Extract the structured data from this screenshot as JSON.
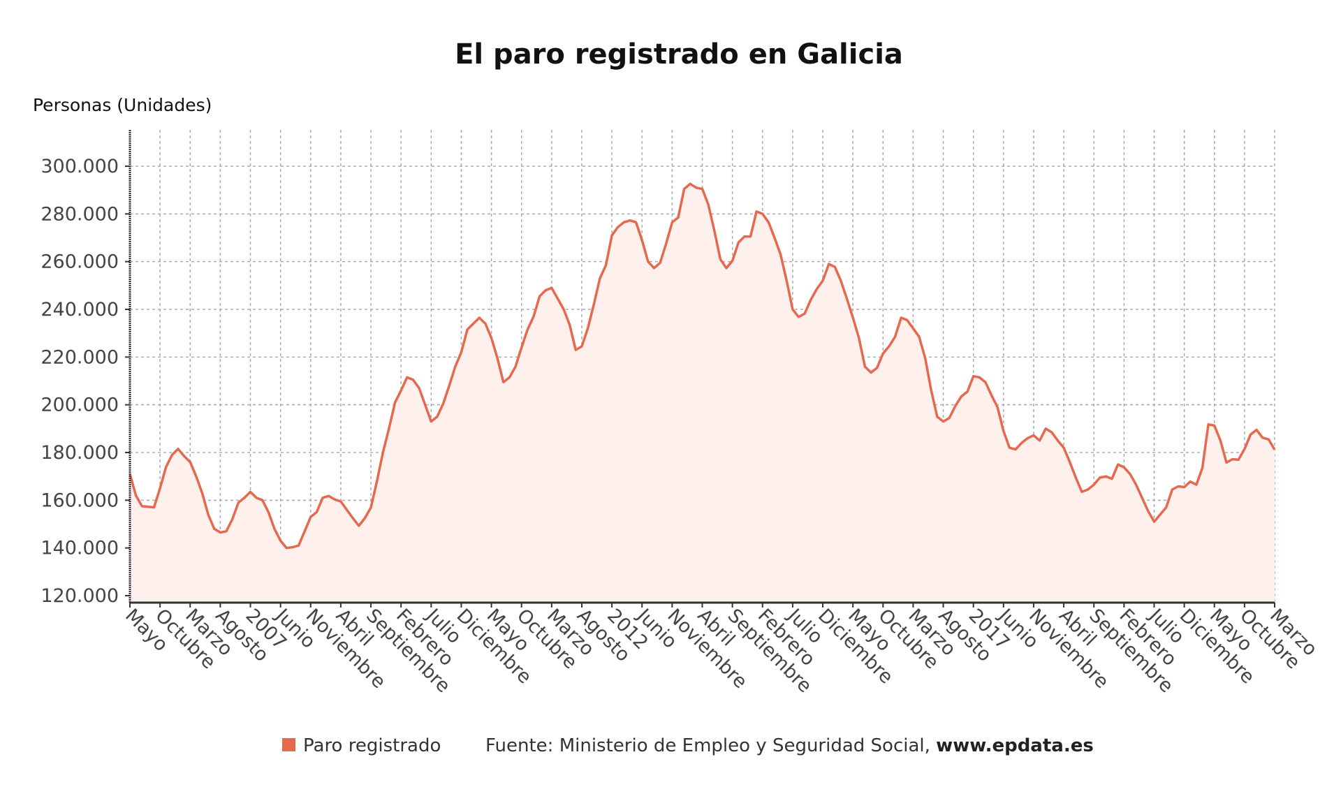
{
  "chart_data": {
    "type": "area",
    "title": "El paro registrado en Galicia",
    "ylabel": "Personas (Unidades)",
    "xlabel": "",
    "ylim": [
      117000,
      315000
    ],
    "yticks": [
      120000,
      140000,
      160000,
      180000,
      200000,
      220000,
      240000,
      260000,
      280000,
      300000
    ],
    "ytick_labels": [
      "120.000",
      "140.000",
      "160.000",
      "180.000",
      "200.000",
      "220.000",
      "240.000",
      "260.000",
      "280.000",
      "300.000"
    ],
    "x_start": "2005-05",
    "x_end": "2021-03",
    "xtick_labels": [
      "Mayo",
      "Octubre",
      "Marzo",
      "Agosto",
      "2007",
      "Junio",
      "Noviembre",
      "Abril",
      "Septiembre",
      "Febrero",
      "Julio",
      "Diciembre",
      "Mayo",
      "Octubre",
      "Marzo",
      "Agosto",
      "2012",
      "Junio",
      "Noviembre",
      "Abril",
      "Septiembre",
      "Febrero",
      "Julio",
      "Diciembre",
      "Mayo",
      "Octubre",
      "Marzo",
      "Agosto",
      "2017",
      "Junio",
      "Noviembre",
      "Abril",
      "Septiembre",
      "Febrero",
      "Julio",
      "Diciembre",
      "Mayo",
      "Octubre",
      "Marzo"
    ],
    "grid": true,
    "legend_placement": "bottom",
    "colors": {
      "line": "#e5694e",
      "fill": "#fdf0ed"
    },
    "series": [
      {
        "name": "Paro registrado",
        "values": [
          171000,
          162000,
          157500,
          157300,
          157000,
          165000,
          174000,
          179000,
          181500,
          178500,
          176000,
          170000,
          163000,
          154000,
          148000,
          146500,
          147000,
          152000,
          159000,
          161000,
          163500,
          161000,
          160000,
          155000,
          148000,
          143000,
          140000,
          140300,
          141000,
          147000,
          153000,
          155000,
          161000,
          161800,
          160300,
          159500,
          156000,
          152500,
          149300,
          152500,
          157000,
          168000,
          180000,
          190000,
          201000,
          206000,
          211500,
          210500,
          207000,
          200000,
          193000,
          195000,
          200500,
          208000,
          216000,
          222000,
          231500,
          234000,
          236500,
          234000,
          228000,
          219500,
          209500,
          211500,
          216000,
          224000,
          231500,
          237000,
          245500,
          248000,
          249000,
          244500,
          240000,
          233500,
          223000,
          224500,
          232000,
          242000,
          253000,
          258500,
          271000,
          274500,
          276500,
          277300,
          276500,
          269000,
          260000,
          257300,
          259500,
          267500,
          276500,
          278500,
          290500,
          292600,
          291000,
          290500,
          284000,
          273000,
          261000,
          257300,
          260300,
          268000,
          270500,
          270500,
          281000,
          280000,
          276500,
          270000,
          263000,
          252000,
          240000,
          236800,
          238200,
          244000,
          248500,
          252000,
          259000,
          257800,
          252000,
          244500,
          236500,
          228000,
          216000,
          213500,
          215500,
          221500,
          224500,
          228500,
          236500,
          235500,
          232000,
          228500,
          219500,
          206000,
          195000,
          193000,
          194500,
          199500,
          203500,
          205500,
          212000,
          211500,
          209500,
          204000,
          199000,
          189000,
          182000,
          181300,
          184000,
          186000,
          187200,
          185000,
          190000,
          188500,
          185000,
          182000,
          176000,
          169500,
          163500,
          164500,
          166500,
          169500,
          170000,
          169000,
          175000,
          173800,
          171000,
          166500,
          161000,
          155500,
          151000,
          154000,
          157000,
          164500,
          165800,
          165500,
          167800,
          166500,
          173500,
          191800,
          191300,
          185000,
          175800,
          177200,
          177000,
          181500,
          187500,
          189500,
          186200,
          185500,
          181200
        ]
      }
    ]
  },
  "legend": {
    "label": "Paro registrado",
    "source": "Fuente: Ministerio de Empleo y Seguridad Social, ",
    "source_site": "www.epdata.es"
  }
}
